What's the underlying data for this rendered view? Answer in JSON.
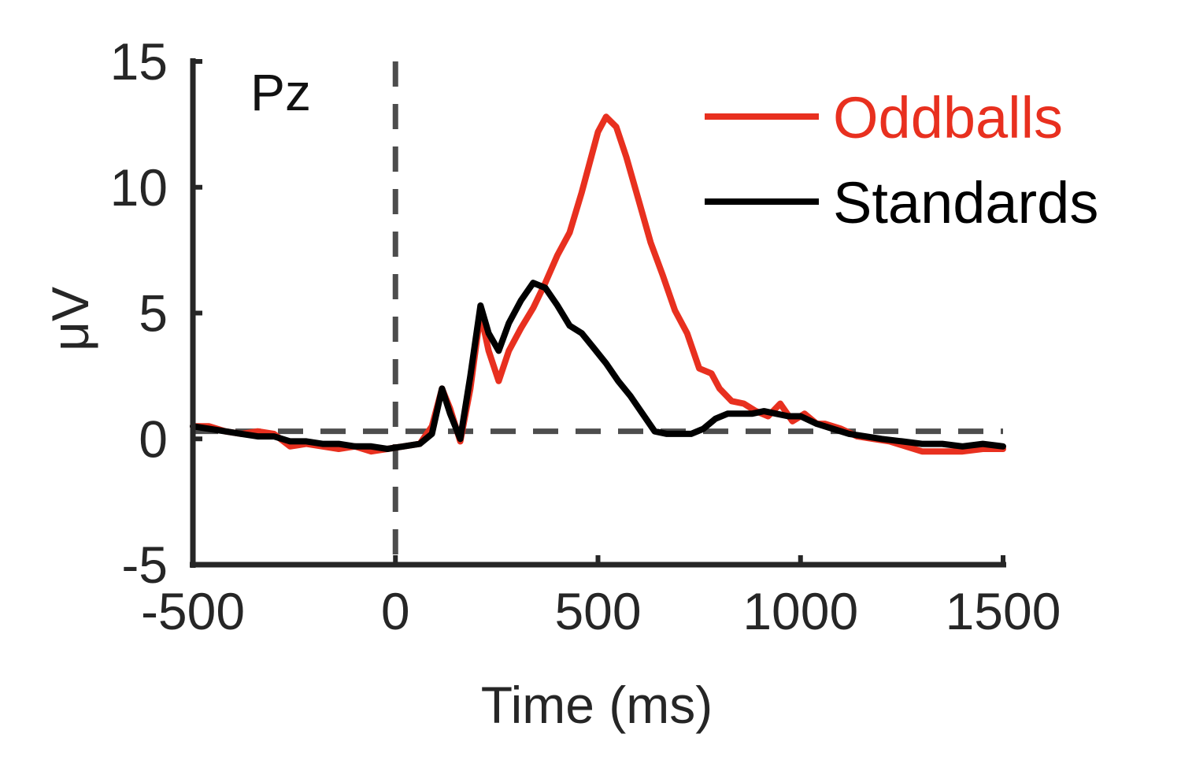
{
  "chart_data": {
    "type": "line",
    "xlabel": "Time (ms)",
    "ylabel": "μV",
    "xlim": [
      -500,
      1500
    ],
    "ylim": [
      -5,
      15
    ],
    "xticks": [
      -500,
      0,
      500,
      1000,
      1500
    ],
    "yticks": [
      -5,
      0,
      5,
      10,
      15
    ],
    "annotation": "Pz",
    "reference_lines": {
      "x": 0,
      "y": 0.3
    },
    "legend_position": "top-right",
    "colors": {
      "axis": "#262626",
      "reference": "#4d4d4d"
    },
    "series": [
      {
        "name": "Oddballs",
        "color": "#e8301f",
        "x": [
          -500,
          -460,
          -420,
          -380,
          -340,
          -300,
          -260,
          -220,
          -180,
          -140,
          -100,
          -60,
          -20,
          20,
          60,
          90,
          115,
          135,
          160,
          185,
          210,
          230,
          255,
          280,
          310,
          340,
          370,
          400,
          430,
          460,
          480,
          500,
          520,
          545,
          570,
          600,
          630,
          660,
          690,
          720,
          750,
          780,
          800,
          830,
          860,
          890,
          920,
          950,
          980,
          1010,
          1040,
          1060,
          1100,
          1140,
          1180,
          1220,
          1260,
          1300,
          1350,
          1400,
          1450,
          1500
        ],
        "y": [
          0.5,
          0.5,
          0.3,
          0.2,
          0.3,
          0.2,
          -0.3,
          -0.2,
          -0.3,
          -0.4,
          -0.3,
          -0.5,
          -0.4,
          -0.3,
          -0.2,
          0.5,
          2.0,
          1.2,
          -0.1,
          2.0,
          5.0,
          3.5,
          2.3,
          3.5,
          4.4,
          5.2,
          6.2,
          7.3,
          8.2,
          9.8,
          11.0,
          12.2,
          12.8,
          12.4,
          11.2,
          9.5,
          7.8,
          6.5,
          5.1,
          4.2,
          2.8,
          2.6,
          2.0,
          1.5,
          1.4,
          1.1,
          0.9,
          1.4,
          0.7,
          1.0,
          0.6,
          0.6,
          0.4,
          0.1,
          0.0,
          -0.1,
          -0.3,
          -0.5,
          -0.5,
          -0.5,
          -0.4,
          -0.4
        ]
      },
      {
        "name": "Standards",
        "color": "#000000",
        "x": [
          -500,
          -460,
          -420,
          -380,
          -340,
          -300,
          -260,
          -220,
          -180,
          -140,
          -100,
          -60,
          -20,
          20,
          60,
          90,
          115,
          135,
          160,
          185,
          210,
          230,
          255,
          280,
          310,
          340,
          370,
          400,
          430,
          460,
          490,
          520,
          550,
          580,
          610,
          640,
          670,
          700,
          730,
          760,
          790,
          820,
          850,
          880,
          910,
          940,
          970,
          1000,
          1040,
          1080,
          1120,
          1160,
          1200,
          1250,
          1300,
          1350,
          1400,
          1450,
          1500
        ],
        "y": [
          0.5,
          0.4,
          0.3,
          0.2,
          0.1,
          0.1,
          -0.1,
          -0.1,
          -0.2,
          -0.2,
          -0.3,
          -0.3,
          -0.4,
          -0.3,
          -0.2,
          0.2,
          2.0,
          1.0,
          0.0,
          2.5,
          5.3,
          4.2,
          3.5,
          4.6,
          5.5,
          6.2,
          6.0,
          5.3,
          4.5,
          4.2,
          3.6,
          3.0,
          2.3,
          1.7,
          1.0,
          0.3,
          0.2,
          0.2,
          0.2,
          0.4,
          0.8,
          1.0,
          1.0,
          1.0,
          1.1,
          1.0,
          0.9,
          0.9,
          0.6,
          0.4,
          0.2,
          0.1,
          0.0,
          -0.1,
          -0.2,
          -0.2,
          -0.3,
          -0.2,
          -0.3
        ]
      }
    ]
  }
}
